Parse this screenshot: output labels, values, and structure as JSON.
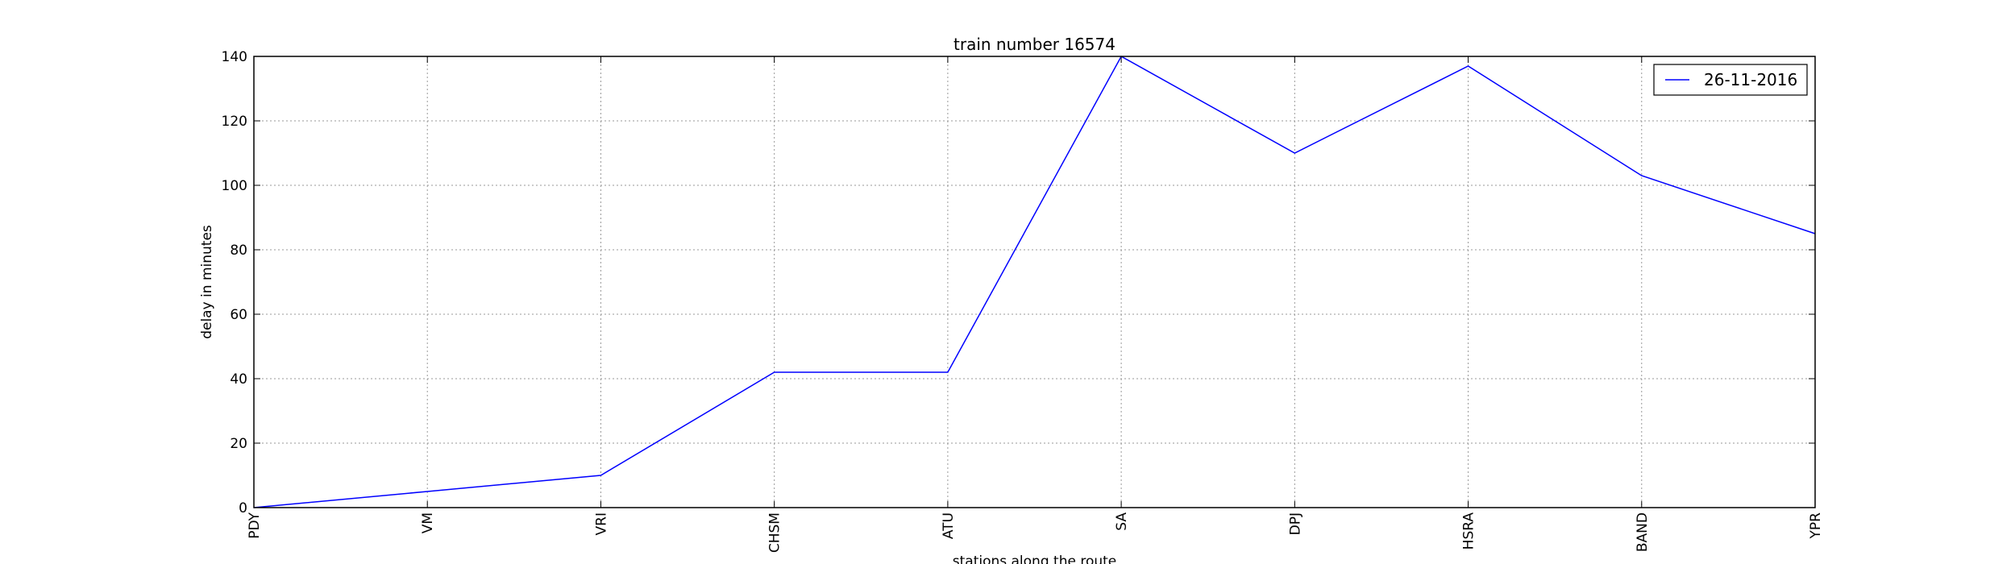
{
  "chart_data": {
    "type": "line",
    "title": "train number 16574",
    "xlabel": "stations along the route",
    "ylabel": "delay in minutes",
    "categories": [
      "PDY",
      "VM",
      "VRI",
      "CHSM",
      "ATU",
      "SA",
      "DPJ",
      "HSRA",
      "BAND",
      "YPR"
    ],
    "series": [
      {
        "name": "26-11-2016",
        "color": "#0000ff",
        "values": [
          0,
          5,
          10,
          42,
          42,
          140,
          110,
          137,
          103,
          85
        ]
      }
    ],
    "ylim": [
      0,
      140
    ],
    "yticks": [
      0,
      20,
      40,
      60,
      80,
      100,
      120,
      140
    ],
    "grid": true,
    "legend_position": "top-right"
  }
}
